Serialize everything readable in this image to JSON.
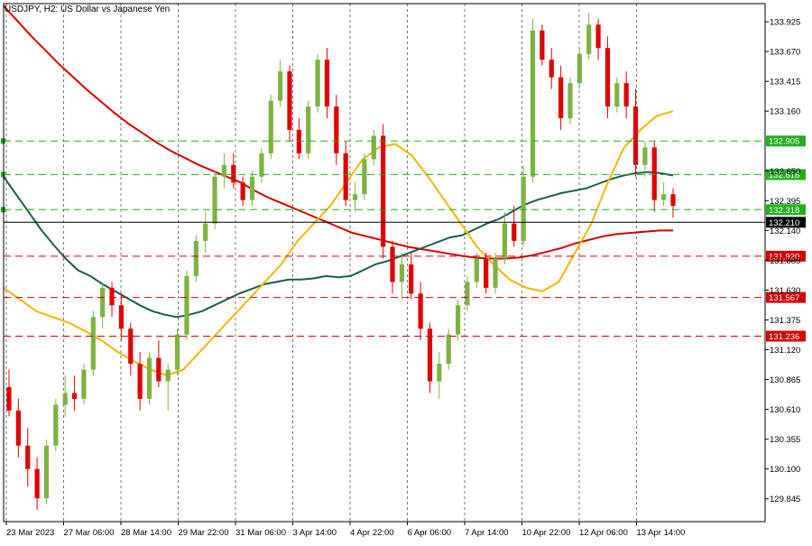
{
  "chart_data": {
    "type": "candlestick",
    "title": "USDJPY, H2:  US Dollar vs Japanese Yen",
    "symbol": "USDJPY",
    "timeframe": "H2",
    "ylim": [
      129.65,
      134.08
    ],
    "y_ticks": [
      129.845,
      130.1,
      130.355,
      130.61,
      130.865,
      131.12,
      131.375,
      131.63,
      131.885,
      132.14,
      132.395,
      132.65,
      133.16,
      133.415,
      133.67,
      133.925
    ],
    "x_ticks": [
      "23 Mar 2023",
      "27 Mar 06:00",
      "28 Mar 14:00",
      "29 Mar 22:00",
      "31 Mar 06:00",
      "3 Apr 14:00",
      "4 Apr 22:00",
      "6 Apr 06:00",
      "7 Apr 14:00",
      "10 Apr 22:00",
      "12 Apr 06:00",
      "13 Apr 14:00"
    ],
    "vertical_grid": "dashed",
    "colors": {
      "bull": "#7cb342",
      "bear": "#e00000",
      "grid": "#555555",
      "axis": "#000000"
    },
    "levels": [
      {
        "value": 132.905,
        "label": "132.905",
        "color": "#21b021",
        "dash": true
      },
      {
        "value": 132.618,
        "label": "132.618",
        "color": "#21b021",
        "dash": true
      },
      {
        "value": 132.318,
        "label": "132.318",
        "color": "#21b021",
        "dash": true
      },
      {
        "value": 132.21,
        "label": "132.210",
        "color": "#000000",
        "dash": false
      },
      {
        "value": 131.92,
        "label": "131.920",
        "color": "#d40000",
        "dash": true
      },
      {
        "value": 131.567,
        "label": "131.567",
        "color": "#d40000",
        "dash": true
      },
      {
        "value": 131.236,
        "label": "131.236",
        "color": "#d40000",
        "dash": true
      }
    ],
    "candles": [
      [
        130.8,
        130.95,
        130.55,
        130.6
      ],
      [
        130.6,
        130.7,
        130.2,
        130.3
      ],
      [
        130.3,
        130.45,
        129.95,
        130.1
      ],
      [
        130.1,
        130.2,
        129.75,
        129.85
      ],
      [
        129.85,
        130.35,
        129.8,
        130.3
      ],
      [
        130.3,
        130.7,
        130.25,
        130.65
      ],
      [
        130.65,
        130.9,
        130.55,
        130.75
      ],
      [
        130.75,
        130.9,
        130.6,
        130.7
      ],
      [
        130.7,
        131.0,
        130.65,
        130.95
      ],
      [
        130.95,
        131.45,
        130.9,
        131.4
      ],
      [
        131.4,
        131.7,
        131.3,
        131.65
      ],
      [
        131.65,
        131.7,
        131.4,
        131.5
      ],
      [
        131.5,
        131.6,
        131.2,
        131.3
      ],
      [
        131.3,
        131.35,
        130.9,
        131.0
      ],
      [
        131.0,
        131.1,
        130.6,
        130.7
      ],
      [
        130.7,
        131.1,
        130.65,
        131.05
      ],
      [
        131.05,
        131.2,
        130.8,
        130.85
      ],
      [
        130.85,
        131.0,
        130.6,
        130.95
      ],
      [
        130.95,
        131.3,
        130.9,
        131.25
      ],
      [
        131.25,
        131.8,
        131.2,
        131.75
      ],
      [
        131.75,
        132.1,
        131.7,
        132.05
      ],
      [
        132.05,
        132.3,
        131.95,
        132.2
      ],
      [
        132.2,
        132.65,
        132.15,
        132.6
      ],
      [
        132.6,
        132.8,
        132.5,
        132.7
      ],
      [
        132.7,
        132.8,
        132.5,
        132.55
      ],
      [
        132.55,
        132.6,
        132.35,
        132.4
      ],
      [
        132.4,
        132.65,
        132.35,
        132.6
      ],
      [
        132.6,
        132.85,
        132.55,
        132.8
      ],
      [
        132.8,
        133.3,
        132.75,
        133.25
      ],
      [
        133.25,
        133.6,
        133.2,
        133.5
      ],
      [
        133.5,
        133.55,
        132.9,
        133.0
      ],
      [
        133.0,
        133.1,
        132.75,
        132.8
      ],
      [
        132.8,
        133.25,
        132.75,
        133.2
      ],
      [
        133.2,
        133.65,
        133.15,
        133.6
      ],
      [
        133.6,
        133.7,
        133.1,
        133.2
      ],
      [
        133.2,
        133.3,
        132.7,
        132.8
      ],
      [
        132.8,
        132.9,
        132.35,
        132.4
      ],
      [
        132.4,
        132.55,
        132.3,
        132.45
      ],
      [
        132.45,
        132.8,
        132.4,
        132.75
      ],
      [
        132.75,
        133.0,
        132.7,
        132.95
      ],
      [
        132.95,
        133.05,
        131.9,
        132.0
      ],
      [
        132.0,
        132.05,
        131.6,
        131.7
      ],
      [
        131.7,
        131.95,
        131.55,
        131.85
      ],
      [
        131.85,
        131.95,
        131.55,
        131.6
      ],
      [
        131.6,
        131.7,
        131.2,
        131.3
      ],
      [
        131.3,
        131.35,
        130.75,
        130.85
      ],
      [
        130.85,
        131.1,
        130.7,
        131.0
      ],
      [
        131.0,
        131.3,
        130.95,
        131.25
      ],
      [
        131.25,
        131.55,
        131.2,
        131.5
      ],
      [
        131.5,
        131.75,
        131.45,
        131.7
      ],
      [
        131.7,
        131.95,
        131.65,
        131.9
      ],
      [
        131.9,
        131.95,
        131.6,
        131.65
      ],
      [
        131.65,
        131.95,
        131.6,
        131.9
      ],
      [
        131.9,
        132.3,
        131.85,
        132.2
      ],
      [
        132.2,
        132.35,
        132.0,
        132.05
      ],
      [
        132.05,
        132.7,
        132.0,
        132.6
      ],
      [
        132.6,
        133.95,
        132.55,
        133.85
      ],
      [
        133.85,
        133.9,
        133.55,
        133.6
      ],
      [
        133.6,
        133.7,
        133.35,
        133.45
      ],
      [
        133.45,
        133.55,
        133.0,
        133.1
      ],
      [
        133.1,
        133.45,
        133.05,
        133.4
      ],
      [
        133.4,
        133.7,
        133.35,
        133.65
      ],
      [
        133.65,
        134.0,
        133.6,
        133.9
      ],
      [
        133.9,
        133.95,
        133.6,
        133.7
      ],
      [
        133.7,
        133.8,
        133.1,
        133.2
      ],
      [
        133.2,
        133.45,
        133.15,
        133.4
      ],
      [
        133.4,
        133.5,
        133.1,
        133.2
      ],
      [
        133.2,
        133.35,
        132.6,
        132.7
      ],
      [
        132.7,
        132.9,
        132.6,
        132.85
      ],
      [
        132.85,
        132.9,
        132.3,
        132.4
      ],
      [
        132.4,
        132.55,
        132.35,
        132.45
      ],
      [
        132.45,
        132.5,
        132.25,
        132.35
      ]
    ],
    "moving_averages": [
      {
        "name": "",
        "color": "#d40000",
        "values": [
          134.06,
          133.93,
          133.8,
          133.68,
          133.56,
          133.45,
          133.34,
          133.24,
          133.14,
          133.05,
          132.97,
          132.89,
          132.82,
          132.76,
          132.7,
          132.65,
          132.6,
          132.55,
          132.48,
          132.42,
          132.37,
          132.32,
          132.27,
          132.22,
          132.17,
          132.12,
          132.09,
          132.06,
          132.03,
          132.0,
          131.98,
          131.96,
          131.94,
          131.92,
          131.905,
          131.9,
          131.9,
          131.91,
          131.93,
          131.96,
          131.99,
          132.03,
          132.06,
          132.09,
          132.11,
          132.12,
          132.13,
          132.14,
          132.14
        ]
      },
      {
        "name": "",
        "color": "#1b5e4a",
        "values": [
          132.6,
          132.45,
          132.3,
          132.15,
          132.02,
          131.9,
          131.8,
          131.75,
          131.68,
          131.62,
          131.56,
          131.5,
          131.45,
          131.42,
          131.4,
          131.42,
          131.45,
          131.5,
          131.55,
          131.6,
          131.64,
          131.68,
          131.7,
          131.72,
          131.72,
          131.73,
          131.75,
          131.74,
          131.75,
          131.8,
          131.85,
          131.88,
          131.92,
          131.96,
          132.0,
          132.04,
          132.08,
          132.1,
          132.15,
          132.2,
          132.24,
          132.3,
          132.36,
          132.4,
          132.43,
          132.46,
          132.48,
          132.5,
          132.54,
          132.58,
          132.61,
          132.63,
          132.64,
          132.63,
          132.61
        ]
      },
      {
        "name": "",
        "color": "#f2b705",
        "values": [
          131.65,
          131.55,
          131.45,
          131.4,
          131.35,
          131.28,
          131.2,
          131.1,
          131.02,
          130.95,
          130.9,
          130.95,
          131.1,
          131.25,
          131.4,
          131.55,
          131.7,
          131.85,
          132.05,
          132.2,
          132.35,
          132.55,
          132.75,
          132.85,
          132.88,
          132.78,
          132.6,
          132.4,
          132.2,
          132.0,
          131.85,
          131.72,
          131.65,
          131.62,
          131.7,
          131.95,
          132.2,
          132.55,
          132.85,
          133.0,
          133.12,
          133.16
        ]
      }
    ]
  }
}
